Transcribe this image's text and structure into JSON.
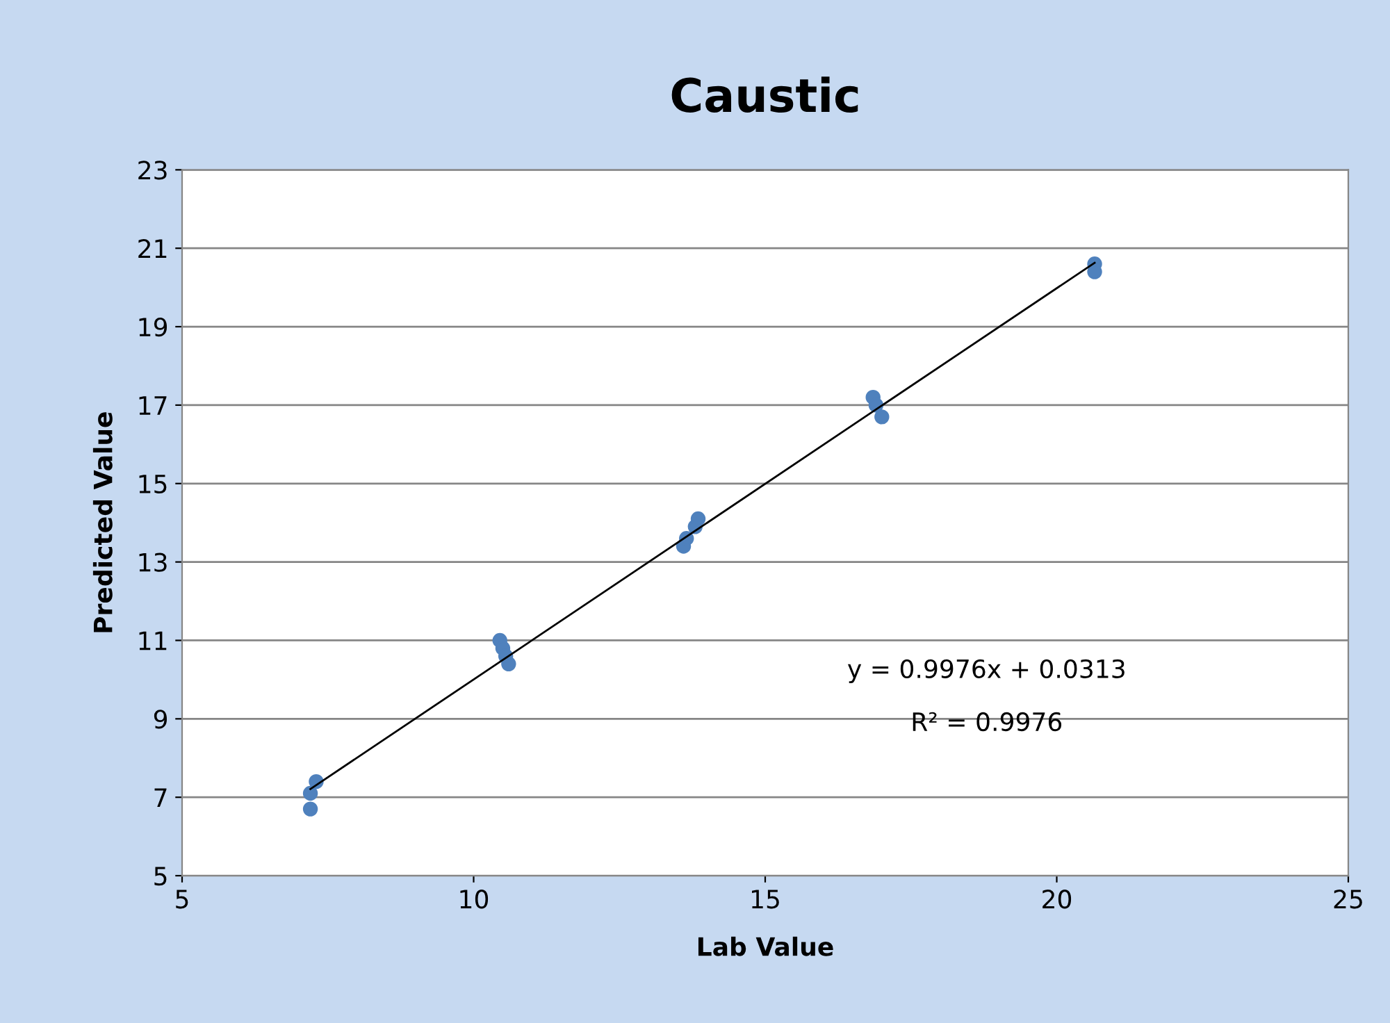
{
  "chart_data": {
    "type": "scatter",
    "title": "Caustic",
    "xlabel": "Lab Value",
    "ylabel": "Predicted Value",
    "xlim": [
      5,
      25
    ],
    "xticks": [
      5,
      10,
      15,
      20,
      25
    ],
    "ylim": [
      5,
      23
    ],
    "yticks": [
      5,
      7,
      9,
      11,
      13,
      15,
      17,
      19,
      21,
      23
    ],
    "grid": "y",
    "legend": false,
    "series": [
      {
        "marker": "circle",
        "color": "#4f81bd",
        "x": [
          7.2,
          7.3,
          7.2,
          10.45,
          10.5,
          10.55,
          10.6,
          13.6,
          13.65,
          13.8,
          13.85,
          16.85,
          16.9,
          17.0,
          20.65,
          20.65
        ],
        "values": [
          6.7,
          7.4,
          7.1,
          11.0,
          10.8,
          10.6,
          10.4,
          13.4,
          13.6,
          13.9,
          14.1,
          17.2,
          17.0,
          16.7,
          20.6,
          20.4
        ]
      },
      {
        "type": "line",
        "marker": "none",
        "color": "#000000",
        "x": [
          7.2,
          20.65
        ],
        "values": [
          7.21,
          20.63
        ]
      }
    ],
    "annotations": [
      "y = 0.9976x + 0.0313",
      "R² = 0.9976"
    ]
  }
}
